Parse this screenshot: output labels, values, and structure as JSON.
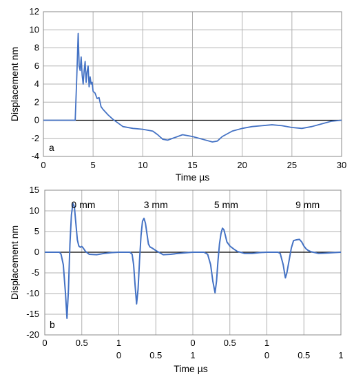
{
  "chart_data": [
    {
      "type": "line",
      "panel_label": "a",
      "xlabel": "Time µs",
      "ylabel": "Displacement  nm",
      "xlim": [
        0,
        30
      ],
      "ylim": [
        -4,
        12
      ],
      "xticks": [
        "0",
        "5",
        "10",
        "15",
        "20",
        "25",
        "30"
      ],
      "yticks": [
        "-4",
        "-2",
        "0",
        "2",
        "4",
        "6",
        "8",
        "10",
        "12"
      ],
      "grid": true,
      "color": "#4472C4",
      "series": [
        {
          "x": [
            0,
            1,
            2,
            3,
            3.2,
            3.35,
            3.5,
            3.6,
            3.7,
            3.8,
            3.9,
            4.0,
            4.1,
            4.2,
            4.3,
            4.4,
            4.5,
            4.6,
            4.7,
            4.8,
            4.9,
            5.0,
            5.2,
            5.4,
            5.6,
            5.8,
            6.0,
            6.5,
            7.0,
            7.5,
            8,
            9,
            10,
            11,
            11.5,
            12,
            12.5,
            13,
            14,
            15,
            16,
            17,
            17.5,
            18,
            19,
            20,
            21,
            22,
            23,
            24,
            25,
            26,
            27,
            28,
            29,
            30
          ],
          "y": [
            0,
            0,
            0,
            0,
            0,
            4.5,
            9.6,
            6.0,
            5.5,
            7.0,
            5.0,
            4.0,
            5.5,
            6.5,
            4.2,
            5.4,
            6.0,
            3.7,
            4.8,
            4.0,
            4.2,
            3.2,
            3.0,
            2.4,
            2.5,
            1.5,
            1.2,
            0.6,
            0.1,
            -0.3,
            -0.7,
            -0.9,
            -1.0,
            -1.2,
            -1.6,
            -2.1,
            -2.2,
            -2.0,
            -1.6,
            -1.8,
            -2.1,
            -2.4,
            -2.3,
            -1.8,
            -1.2,
            -0.9,
            -0.7,
            -0.6,
            -0.5,
            -0.6,
            -0.8,
            -0.9,
            -0.7,
            -0.4,
            -0.1,
            0.0
          ]
        }
      ]
    },
    {
      "type": "line",
      "panel_label": "b",
      "xlabel": "Time µs",
      "ylabel": "Displacement  nm",
      "ylim": [
        -20,
        15
      ],
      "yticks": [
        "-20",
        "-15",
        "-10",
        "-5",
        "0",
        "5",
        "10",
        "15"
      ],
      "grid": true,
      "color": "#4472C4",
      "x_tick_labels_row1": [
        "0",
        "0.5",
        "1",
        "0",
        "0.5",
        "1"
      ],
      "x_tick_labels_row2": [
        "0",
        "0.5",
        "1",
        "0",
        "0.5",
        "1"
      ],
      "series": [
        {
          "name": "0 mm",
          "x": [
            0,
            0.15,
            0.2,
            0.22,
            0.25,
            0.28,
            0.3,
            0.32,
            0.34,
            0.36,
            0.38,
            0.4,
            0.42,
            0.44,
            0.46,
            0.48,
            0.5,
            0.52,
            0.55,
            0.6,
            0.7,
            0.8,
            0.9,
            1.0
          ],
          "y": [
            0,
            0,
            0,
            -0.5,
            -3,
            -10,
            -16,
            -9,
            2,
            9,
            11.8,
            11.0,
            7,
            3,
            1.5,
            1.2,
            1.4,
            1.0,
            0.2,
            -0.5,
            -0.6,
            -0.3,
            -0.1,
            0
          ]
        },
        {
          "name": "3 mm",
          "x": [
            0,
            0.15,
            0.18,
            0.2,
            0.22,
            0.24,
            0.26,
            0.28,
            0.3,
            0.32,
            0.34,
            0.36,
            0.38,
            0.4,
            0.42,
            0.45,
            0.5,
            0.6,
            0.7,
            0.8,
            1.0
          ],
          "y": [
            0,
            0,
            -0.5,
            -3,
            -8,
            -12.5,
            -9,
            -2,
            4,
            7.5,
            8.2,
            7.0,
            4.5,
            2,
            1.3,
            1.0,
            0.4,
            -0.6,
            -0.5,
            -0.3,
            0
          ]
        },
        {
          "name": "5 mm",
          "x": [
            0,
            0.15,
            0.2,
            0.24,
            0.27,
            0.3,
            0.32,
            0.34,
            0.36,
            0.38,
            0.4,
            0.42,
            0.44,
            0.46,
            0.5,
            0.55,
            0.6,
            0.7,
            0.8,
            0.9,
            1.0
          ],
          "y": [
            0,
            0,
            -0.5,
            -3,
            -7,
            -9.8,
            -7,
            -2,
            2,
            4.5,
            5.8,
            5.4,
            4,
            2.5,
            1.5,
            0.8,
            0.2,
            -0.3,
            -0.3,
            -0.1,
            0
          ]
        },
        {
          "name": "9 mm",
          "x": [
            0,
            0.15,
            0.18,
            0.22,
            0.25,
            0.27,
            0.3,
            0.33,
            0.36,
            0.4,
            0.44,
            0.47,
            0.5,
            0.53,
            0.56,
            0.6,
            0.7,
            0.8,
            0.9,
            1.0
          ],
          "y": [
            0,
            0,
            -0.3,
            -3,
            -6.2,
            -5,
            -2,
            1,
            2.8,
            3.0,
            3.1,
            2.5,
            1.5,
            0.8,
            0.4,
            0.1,
            -0.3,
            -0.2,
            -0.1,
            0
          ]
        }
      ]
    }
  ]
}
